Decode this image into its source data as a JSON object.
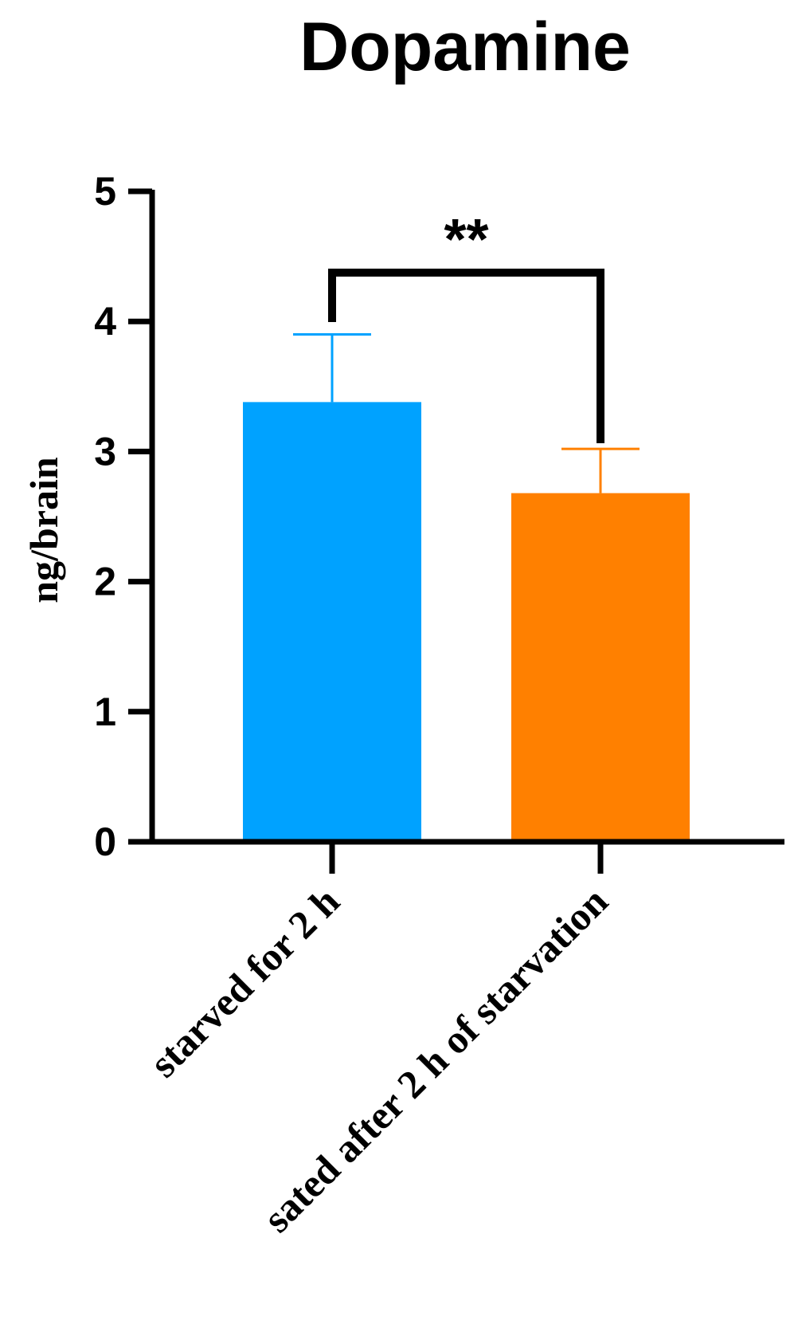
{
  "chart_data": {
    "type": "bar",
    "title": "Dopamine",
    "xlabel": "",
    "ylabel": "ng/brain",
    "ylim": [
      0,
      5
    ],
    "yticks": [
      "0",
      "1",
      "2",
      "3",
      "4",
      "5"
    ],
    "categories": [
      "starved for 2 h",
      "sated after 2 h of starvation"
    ],
    "values": [
      3.38,
      2.68
    ],
    "error_upper": [
      3.9,
      3.02
    ],
    "colors": [
      "#00A2FF",
      "#FF8000"
    ],
    "significance": {
      "between": [
        0,
        1
      ],
      "label": "**"
    },
    "grid": false,
    "legend": "none"
  }
}
